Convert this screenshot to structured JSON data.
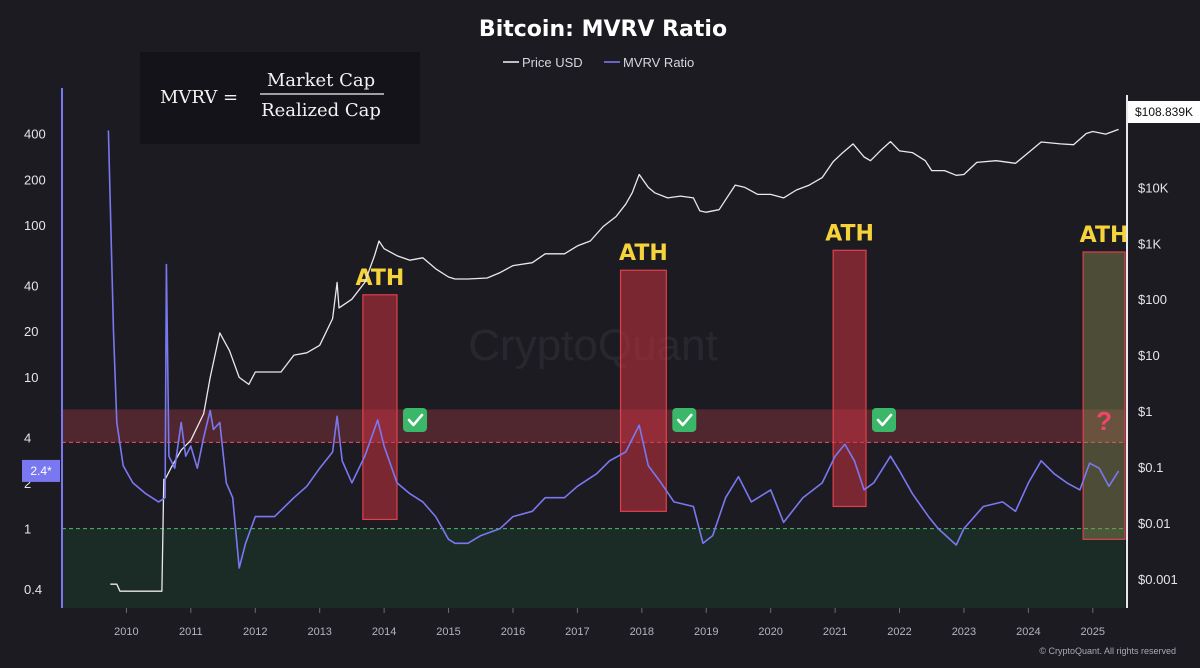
{
  "chart_data": {
    "type": "line",
    "title": "Bitcoin: MVRV Ratio",
    "watermark": "CryptoQuant",
    "footer": "© CryptoQuant. All rights reserved",
    "formula": {
      "lhs": "MVRV =",
      "numerator": "Market Cap",
      "denominator": "Realized Cap"
    },
    "legend": [
      {
        "name": "Price USD",
        "color": "#e8e8ee"
      },
      {
        "name": "MVRV Ratio",
        "color": "#7a78f0"
      }
    ],
    "x_ticks": [
      "2010",
      "2011",
      "2012",
      "2013",
      "2014",
      "2015",
      "2016",
      "2017",
      "2018",
      "2019",
      "2020",
      "2021",
      "2022",
      "2023",
      "2024",
      "2025"
    ],
    "xlim": [
      2009.0,
      2025.5
    ],
    "left_axis": {
      "scale": "log",
      "range": [
        0.3,
        800
      ],
      "ticks": [
        {
          "v": 0.4,
          "label": "0.4"
        },
        {
          "v": 1,
          "label": "1"
        },
        {
          "v": 2,
          "label": "2"
        },
        {
          "v": 4,
          "label": "4"
        },
        {
          "v": 10,
          "label": "10"
        },
        {
          "v": 20,
          "label": "20"
        },
        {
          "v": 40,
          "label": "40"
        },
        {
          "v": 100,
          "label": "100"
        },
        {
          "v": 200,
          "label": "200"
        },
        {
          "v": 400,
          "label": "400"
        }
      ]
    },
    "right_axis": {
      "scale": "log",
      "range": [
        0.0003,
        600000
      ],
      "ticks": [
        {
          "v": 0.001,
          "label": "$0.001"
        },
        {
          "v": 0.01,
          "label": "$0.01"
        },
        {
          "v": 0.1,
          "label": "$0.1"
        },
        {
          "v": 1,
          "label": "$1"
        },
        {
          "v": 10,
          "label": "$10"
        },
        {
          "v": 100,
          "label": "$100"
        },
        {
          "v": 1000,
          "label": "$1K"
        },
        {
          "v": 10000,
          "label": "$10K"
        }
      ]
    },
    "current_mvrv_label": "2.4*",
    "current_mvrv_value": 2.4,
    "last_price_label": "$108.839K",
    "last_price_value": 108839,
    "zones": [
      {
        "type": "overvalued",
        "from": 3.7,
        "to": 6.1,
        "color": "#5e2a33"
      },
      {
        "type": "undervalued",
        "from": 0.3,
        "to": 1.0,
        "color": "#1b3128"
      }
    ],
    "reference_lines": [
      {
        "value": 3.7,
        "color": "#e8525e"
      },
      {
        "value": 1.0,
        "color": "#4cb870"
      }
    ],
    "ath_annotations": [
      {
        "label": "ATH",
        "x_start": 2013.67,
        "x_end": 2014.2,
        "top": 120,
        "bottom": 1.15,
        "checked": true
      },
      {
        "label": "ATH",
        "x_start": 2017.67,
        "x_end": 2018.38,
        "top": 330,
        "bottom": 1.3,
        "checked": true
      },
      {
        "label": "ATH",
        "x_start": 2020.97,
        "x_end": 2021.48,
        "top": 750,
        "bottom": 1.4,
        "checked": true
      },
      {
        "label": "ATH",
        "x_start": 2024.85,
        "x_end": 2025.5,
        "top": 700,
        "bottom": 0.85,
        "checked": false,
        "mark": "?"
      }
    ],
    "series": [
      {
        "name": "Price USD",
        "axis": "right",
        "x": [
          2009.75,
          2009.85,
          2009.9,
          2010.0,
          2010.3,
          2010.55,
          2010.58,
          2010.6,
          2010.7,
          2010.85,
          2011.0,
          2011.2,
          2011.3,
          2011.45,
          2011.6,
          2011.75,
          2011.9,
          2012.0,
          2012.2,
          2012.4,
          2012.6,
          2012.8,
          2013.0,
          2013.2,
          2013.27,
          2013.3,
          2013.5,
          2013.7,
          2013.85,
          2013.92,
          2014.0,
          2014.2,
          2014.4,
          2014.6,
          2014.8,
          2015.0,
          2015.1,
          2015.3,
          2015.6,
          2015.8,
          2016.0,
          2016.3,
          2016.5,
          2016.8,
          2017.0,
          2017.2,
          2017.4,
          2017.6,
          2017.75,
          2017.85,
          2017.96,
          2018.1,
          2018.2,
          2018.4,
          2018.6,
          2018.8,
          2018.9,
          2019.0,
          2019.2,
          2019.45,
          2019.6,
          2019.8,
          2020.0,
          2020.2,
          2020.4,
          2020.6,
          2020.8,
          2020.97,
          2021.1,
          2021.28,
          2021.45,
          2021.55,
          2021.7,
          2021.86,
          2022.0,
          2022.2,
          2022.4,
          2022.5,
          2022.7,
          2022.88,
          2023.0,
          2023.2,
          2023.5,
          2023.8,
          2024.0,
          2024.2,
          2024.5,
          2024.7,
          2024.9,
          2025.0,
          2025.2,
          2025.4
        ],
        "y": [
          0.0008,
          0.0008,
          0.0006,
          0.0006,
          0.0006,
          0.0006,
          0.06,
          0.06,
          0.1,
          0.2,
          0.3,
          0.9,
          4,
          25,
          12,
          4,
          3,
          5,
          5,
          5,
          10,
          11,
          15,
          45,
          200,
          70,
          100,
          200,
          600,
          1100,
          800,
          600,
          500,
          550,
          350,
          250,
          230,
          230,
          240,
          300,
          400,
          450,
          650,
          650,
          900,
          1100,
          2000,
          3000,
          5000,
          8000,
          17000,
          10000,
          8000,
          6500,
          7000,
          6500,
          3800,
          3600,
          4000,
          11000,
          10000,
          7500,
          7500,
          6500,
          9000,
          11000,
          15000,
          29000,
          40000,
          60000,
          35000,
          30000,
          45000,
          66000,
          45000,
          42000,
          30000,
          20000,
          20000,
          16500,
          17000,
          28000,
          30000,
          27000,
          42000,
          65000,
          60000,
          58000,
          92000,
          100000,
          90000,
          108839
        ]
      },
      {
        "name": "MVRV Ratio",
        "axis": "left",
        "x": [
          2009.72,
          2009.8,
          2009.85,
          2009.95,
          2010.1,
          2010.3,
          2010.5,
          2010.6,
          2010.62,
          2010.66,
          2010.75,
          2010.85,
          2010.92,
          2011.0,
          2011.1,
          2011.2,
          2011.3,
          2011.35,
          2011.45,
          2011.55,
          2011.65,
          2011.75,
          2011.85,
          2012.0,
          2012.3,
          2012.6,
          2012.8,
          2013.0,
          2013.2,
          2013.27,
          2013.35,
          2013.5,
          2013.7,
          2013.9,
          2014.0,
          2014.2,
          2014.4,
          2014.6,
          2014.8,
          2015.0,
          2015.1,
          2015.3,
          2015.5,
          2015.8,
          2016.0,
          2016.3,
          2016.5,
          2016.8,
          2017.0,
          2017.3,
          2017.5,
          2017.75,
          2017.96,
          2018.1,
          2018.3,
          2018.5,
          2018.8,
          2018.95,
          2019.1,
          2019.3,
          2019.5,
          2019.7,
          2020.0,
          2020.2,
          2020.5,
          2020.8,
          2021.0,
          2021.15,
          2021.3,
          2021.45,
          2021.6,
          2021.86,
          2022.0,
          2022.2,
          2022.45,
          2022.6,
          2022.88,
          2023.0,
          2023.3,
          2023.6,
          2023.8,
          2024.0,
          2024.2,
          2024.4,
          2024.6,
          2024.8,
          2024.95,
          2025.1,
          2025.25,
          2025.4
        ],
        "y": [
          420,
          20,
          5,
          2.6,
          2.0,
          1.7,
          1.5,
          1.6,
          55,
          3,
          2.5,
          5,
          3,
          3.5,
          2.5,
          4,
          6,
          4.5,
          5,
          2,
          1.6,
          0.55,
          0.8,
          1.2,
          1.2,
          1.6,
          1.9,
          2.5,
          3.2,
          5.5,
          2.8,
          2,
          3,
          5.2,
          3.5,
          2,
          1.7,
          1.5,
          1.2,
          0.85,
          0.8,
          0.8,
          0.9,
          1.0,
          1.2,
          1.3,
          1.6,
          1.6,
          1.9,
          2.3,
          2.8,
          3.2,
          4.8,
          2.6,
          2.0,
          1.5,
          1.4,
          0.8,
          0.9,
          1.6,
          2.2,
          1.5,
          1.8,
          1.1,
          1.6,
          2.0,
          3.0,
          3.6,
          2.8,
          1.8,
          2.0,
          3.0,
          2.4,
          1.7,
          1.2,
          1.0,
          0.78,
          1.0,
          1.4,
          1.5,
          1.3,
          2.0,
          2.8,
          2.3,
          2.0,
          1.8,
          2.7,
          2.5,
          1.9,
          2.4
        ]
      }
    ]
  }
}
